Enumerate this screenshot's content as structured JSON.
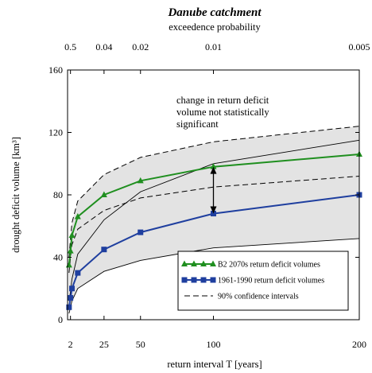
{
  "chart_data": {
    "type": "line",
    "title": "Danube catchment",
    "xlabel": "return interval T [years]",
    "ylabel": "drought deficit volume [km³]",
    "top_axis_label": "exceedence probability",
    "xlim": [
      0,
      200
    ],
    "ylim": [
      0,
      160
    ],
    "x_ticks": [
      2,
      25,
      50,
      100,
      200
    ],
    "y_ticks": [
      0,
      40,
      80,
      120,
      160
    ],
    "top_ticks": [
      {
        "label": "0.5",
        "x": 2
      },
      {
        "label": "0.04",
        "x": 25
      },
      {
        "label": "0.02",
        "x": 50
      },
      {
        "label": "0.01",
        "x": 100
      },
      {
        "label": "0.005",
        "x": 200
      }
    ],
    "annotation": [
      "change in return deficit",
      "volume not statistically",
      "significant"
    ],
    "series": [
      {
        "name": "B2 2070s return deficit volumes",
        "color": "#1f8f1f",
        "marker": "triangle",
        "x": [
          1,
          2,
          3,
          7,
          25,
          50,
          100,
          200
        ],
        "y": [
          35,
          44,
          54,
          66,
          80,
          89,
          98,
          106
        ]
      },
      {
        "name": "1961-1990 return deficit volumes",
        "color": "#1f3f9f",
        "marker": "square",
        "x": [
          1,
          2,
          3,
          7,
          25,
          50,
          100,
          200
        ],
        "y": [
          8,
          14,
          20,
          30,
          45,
          56,
          68,
          80
        ]
      }
    ],
    "confidence_intervals": {
      "name": "90% confidence intervals",
      "B2_upper": {
        "x": [
          1,
          2,
          3,
          7,
          25,
          50,
          100,
          200
        ],
        "y": [
          40,
          52,
          62,
          76,
          93,
          104,
          114,
          124
        ]
      },
      "B2_lower": {
        "x": [
          1,
          2,
          3,
          7,
          25,
          50,
          100,
          200
        ],
        "y": [
          30,
          40,
          48,
          58,
          70,
          78,
          85,
          92
        ]
      },
      "baseline_upper": {
        "x": [
          1,
          2,
          3,
          7,
          25,
          50,
          100,
          200
        ],
        "y": [
          12,
          18,
          26,
          42,
          64,
          82,
          100,
          115
        ]
      },
      "baseline_lower": {
        "x": [
          1,
          2,
          3,
          7,
          25,
          50,
          100,
          200
        ],
        "y": [
          4,
          8,
          12,
          20,
          31,
          38,
          46,
          52
        ]
      }
    },
    "significance_arrow": {
      "x": 100,
      "y_from": 68,
      "y_to": 98
    },
    "legend_position": "bottom-right",
    "grid": false
  }
}
